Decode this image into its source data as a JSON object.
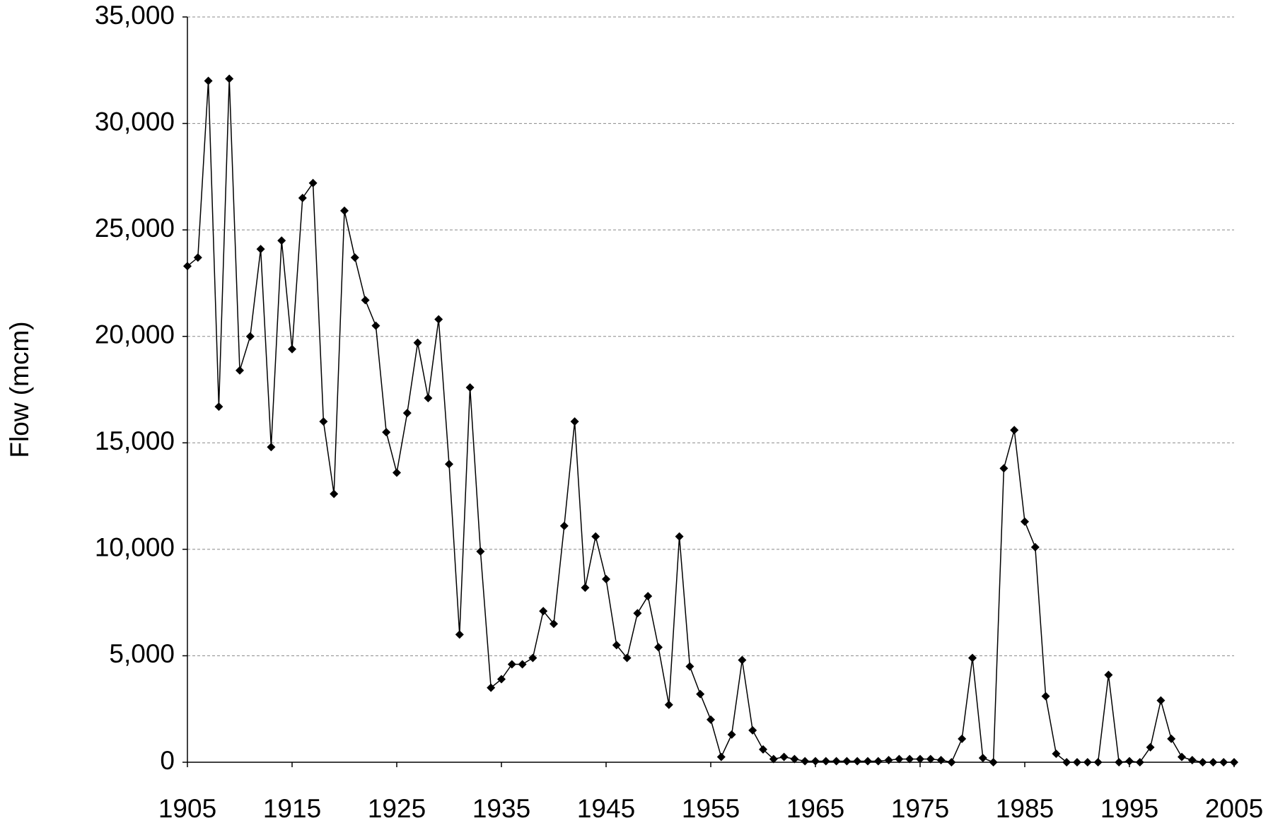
{
  "chart_data": {
    "type": "line",
    "y_label": "Flow (mcm)",
    "x": [
      1905,
      1906,
      1907,
      1908,
      1909,
      1910,
      1911,
      1912,
      1913,
      1914,
      1915,
      1916,
      1917,
      1918,
      1919,
      1920,
      1921,
      1922,
      1923,
      1924,
      1925,
      1926,
      1927,
      1928,
      1929,
      1930,
      1931,
      1932,
      1933,
      1934,
      1935,
      1936,
      1937,
      1938,
      1939,
      1940,
      1941,
      1942,
      1943,
      1944,
      1945,
      1946,
      1947,
      1948,
      1949,
      1950,
      1951,
      1952,
      1953,
      1954,
      1955,
      1956,
      1957,
      1958,
      1959,
      1960,
      1961,
      1962,
      1963,
      1964,
      1965,
      1966,
      1967,
      1968,
      1969,
      1970,
      1971,
      1972,
      1973,
      1974,
      1975,
      1976,
      1977,
      1978,
      1979,
      1980,
      1981,
      1982,
      1983,
      1984,
      1985,
      1986,
      1987,
      1988,
      1989,
      1990,
      1991,
      1992,
      1993,
      1994,
      1995,
      1996,
      1997,
      1998,
      1999,
      2000,
      2001,
      2002,
      2003,
      2004,
      2005
    ],
    "values": [
      23300,
      23700,
      32000,
      16700,
      32100,
      18400,
      20000,
      24100,
      14800,
      24500,
      19400,
      26500,
      27200,
      16000,
      12600,
      25900,
      23700,
      21700,
      20500,
      15500,
      13600,
      16400,
      19700,
      17100,
      20800,
      14000,
      6000,
      17600,
      9900,
      3500,
      3900,
      4600,
      4600,
      4900,
      7100,
      6500,
      11100,
      16000,
      8200,
      10600,
      8600,
      5500,
      4900,
      7000,
      7800,
      5400,
      2700,
      10600,
      4500,
      3200,
      2000,
      250,
      1300,
      4800,
      1500,
      600,
      150,
      250,
      150,
      50,
      50,
      50,
      50,
      50,
      50,
      50,
      50,
      100,
      150,
      150,
      150,
      150,
      100,
      0,
      1100,
      4900,
      200,
      0,
      13800,
      15600,
      11300,
      10100,
      3100,
      400,
      0,
      0,
      0,
      0,
      4100,
      0,
      50,
      0,
      700,
      2900,
      1100,
      250,
      100,
      0,
      0,
      0,
      0
    ],
    "color": "#000000",
    "xlim": [
      1905,
      2005
    ],
    "xticks": [
      1905,
      1915,
      1925,
      1935,
      1945,
      1955,
      1965,
      1975,
      1985,
      1995,
      2005
    ],
    "ylim": [
      0,
      35000
    ],
    "yticks": [
      0,
      {
        "value": 5000,
        "label": "5,000"
      },
      {
        "value": 10000,
        "label": "10,000"
      },
      {
        "value": 15000,
        "label": "15,000"
      },
      {
        "value": 20000,
        "label": "20,000"
      },
      {
        "value": 25000,
        "label": "25,000"
      },
      {
        "value": 30000,
        "label": "30,000"
      },
      {
        "value": 35000,
        "label": "35,000"
      }
    ],
    "grid": true
  }
}
